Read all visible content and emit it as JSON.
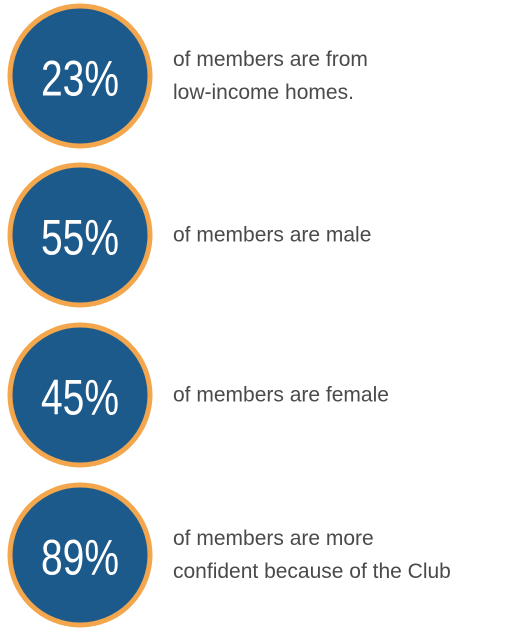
{
  "items": [
    {
      "stat": "23%",
      "lines": [
        "of members are from",
        "low-income homes."
      ]
    },
    {
      "stat": "55%",
      "lines": [
        "of members are male"
      ]
    },
    {
      "stat": "45%",
      "lines": [
        "of members are female"
      ]
    },
    {
      "stat": "89%",
      "lines": [
        "of members are more",
        "confident because of the Club"
      ]
    }
  ]
}
